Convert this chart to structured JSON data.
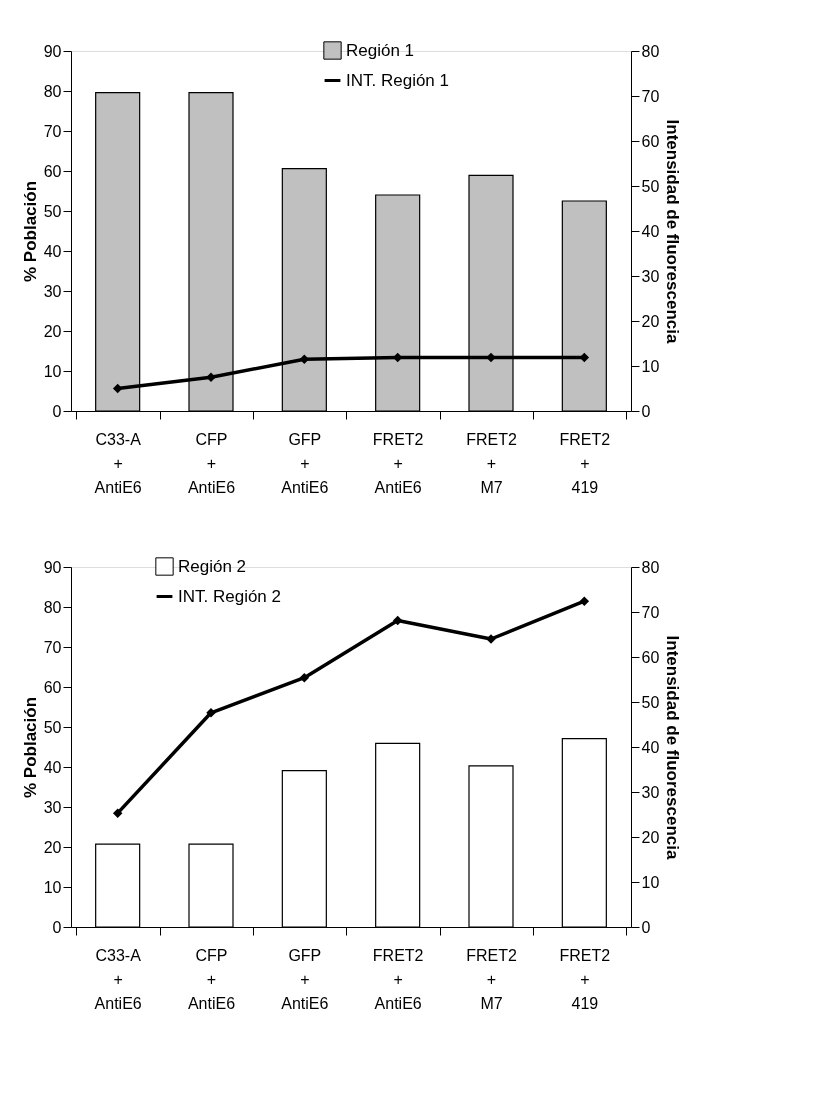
{
  "chart_data": [
    {
      "type": "bar",
      "categories": [
        "C33-A\n+\nAntiE6",
        "CFP\n+\nAntiE6",
        "GFP\n+\nAntiE6",
        "FRET2\n+\nAntiE6",
        "FRET2\n+\nM7",
        "FRET2\n+\n419"
      ],
      "ylabel": "% Población",
      "y2label": "Intensidad de fluorescencia",
      "ylim": [
        0,
        90
      ],
      "yticks": [
        0,
        10,
        20,
        30,
        40,
        50,
        60,
        70,
        80,
        90
      ],
      "y2lim": [
        0,
        80
      ],
      "y2ticks": [
        0,
        10,
        20,
        30,
        40,
        50,
        60,
        70,
        80
      ],
      "grid": false,
      "legend": "top",
      "marker": "diamond",
      "series": [
        {
          "name": "Región 1",
          "color": "#c0c0c0",
          "values": [
            79.6,
            79.6,
            60.6,
            54.0,
            58.9,
            52.5
          ]
        },
        {
          "name": "INT. Región 1",
          "type": "line",
          "axis": "y2",
          "color": "#000000",
          "values": [
            5.0,
            7.5,
            11.5,
            11.9,
            11.9,
            11.9
          ]
        }
      ]
    },
    {
      "type": "bar",
      "categories": [
        "C33-A\n+\nAntiE6",
        "CFP\n+\nAntiE6",
        "GFP\n+\nAntiE6",
        "FRET2\n+\nAntiE6",
        "FRET2\n+\nM7",
        "FRET2\n+\n419"
      ],
      "ylabel": "% Población",
      "y2label": "Intensidad de fluorescencia",
      "ylim": [
        0,
        90
      ],
      "yticks": [
        0,
        10,
        20,
        30,
        40,
        50,
        60,
        70,
        80,
        90
      ],
      "y2lim": [
        0,
        80
      ],
      "y2ticks": [
        0,
        10,
        20,
        30,
        40,
        50,
        60,
        70,
        80
      ],
      "grid": false,
      "legend": "top left",
      "marker": "diamond",
      "series": [
        {
          "name": "Región 2",
          "color": "#ffffff",
          "values": [
            20.7,
            20.7,
            39.1,
            45.9,
            40.3,
            47.1
          ]
        },
        {
          "name": "INT. Región 2",
          "type": "line",
          "axis": "y2",
          "color": "#000000",
          "values": [
            25.3,
            47.6,
            55.4,
            68.1,
            64.0,
            72.4
          ]
        }
      ]
    }
  ]
}
